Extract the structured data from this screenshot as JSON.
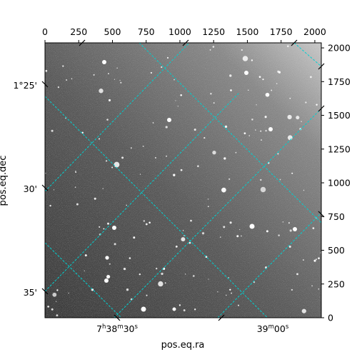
{
  "figure": {
    "xlabel": "pos.eq.ra",
    "ylabel": "pos.eq.dec",
    "grid_color": "#00d0d0",
    "pixel_axes": {
      "top_ticks": [
        "0",
        "250",
        "500",
        "750",
        "1000",
        "1250",
        "1500",
        "1750",
        "2000"
      ],
      "right_ticks": [
        "0",
        "250",
        "500",
        "750",
        "1000",
        "1250",
        "1500",
        "1750",
        "2000"
      ]
    },
    "world_axes": {
      "ra_ticks": [
        {
          "h": "7",
          "m": "38",
          "s": "30",
          "hu": "h",
          "mu": "m",
          "su": "s"
        },
        {
          "m": "39",
          "s": "00",
          "mu": "m",
          "su": "s"
        }
      ],
      "dec_ticks": [
        "1°25'",
        "30'",
        "35'"
      ]
    }
  }
}
